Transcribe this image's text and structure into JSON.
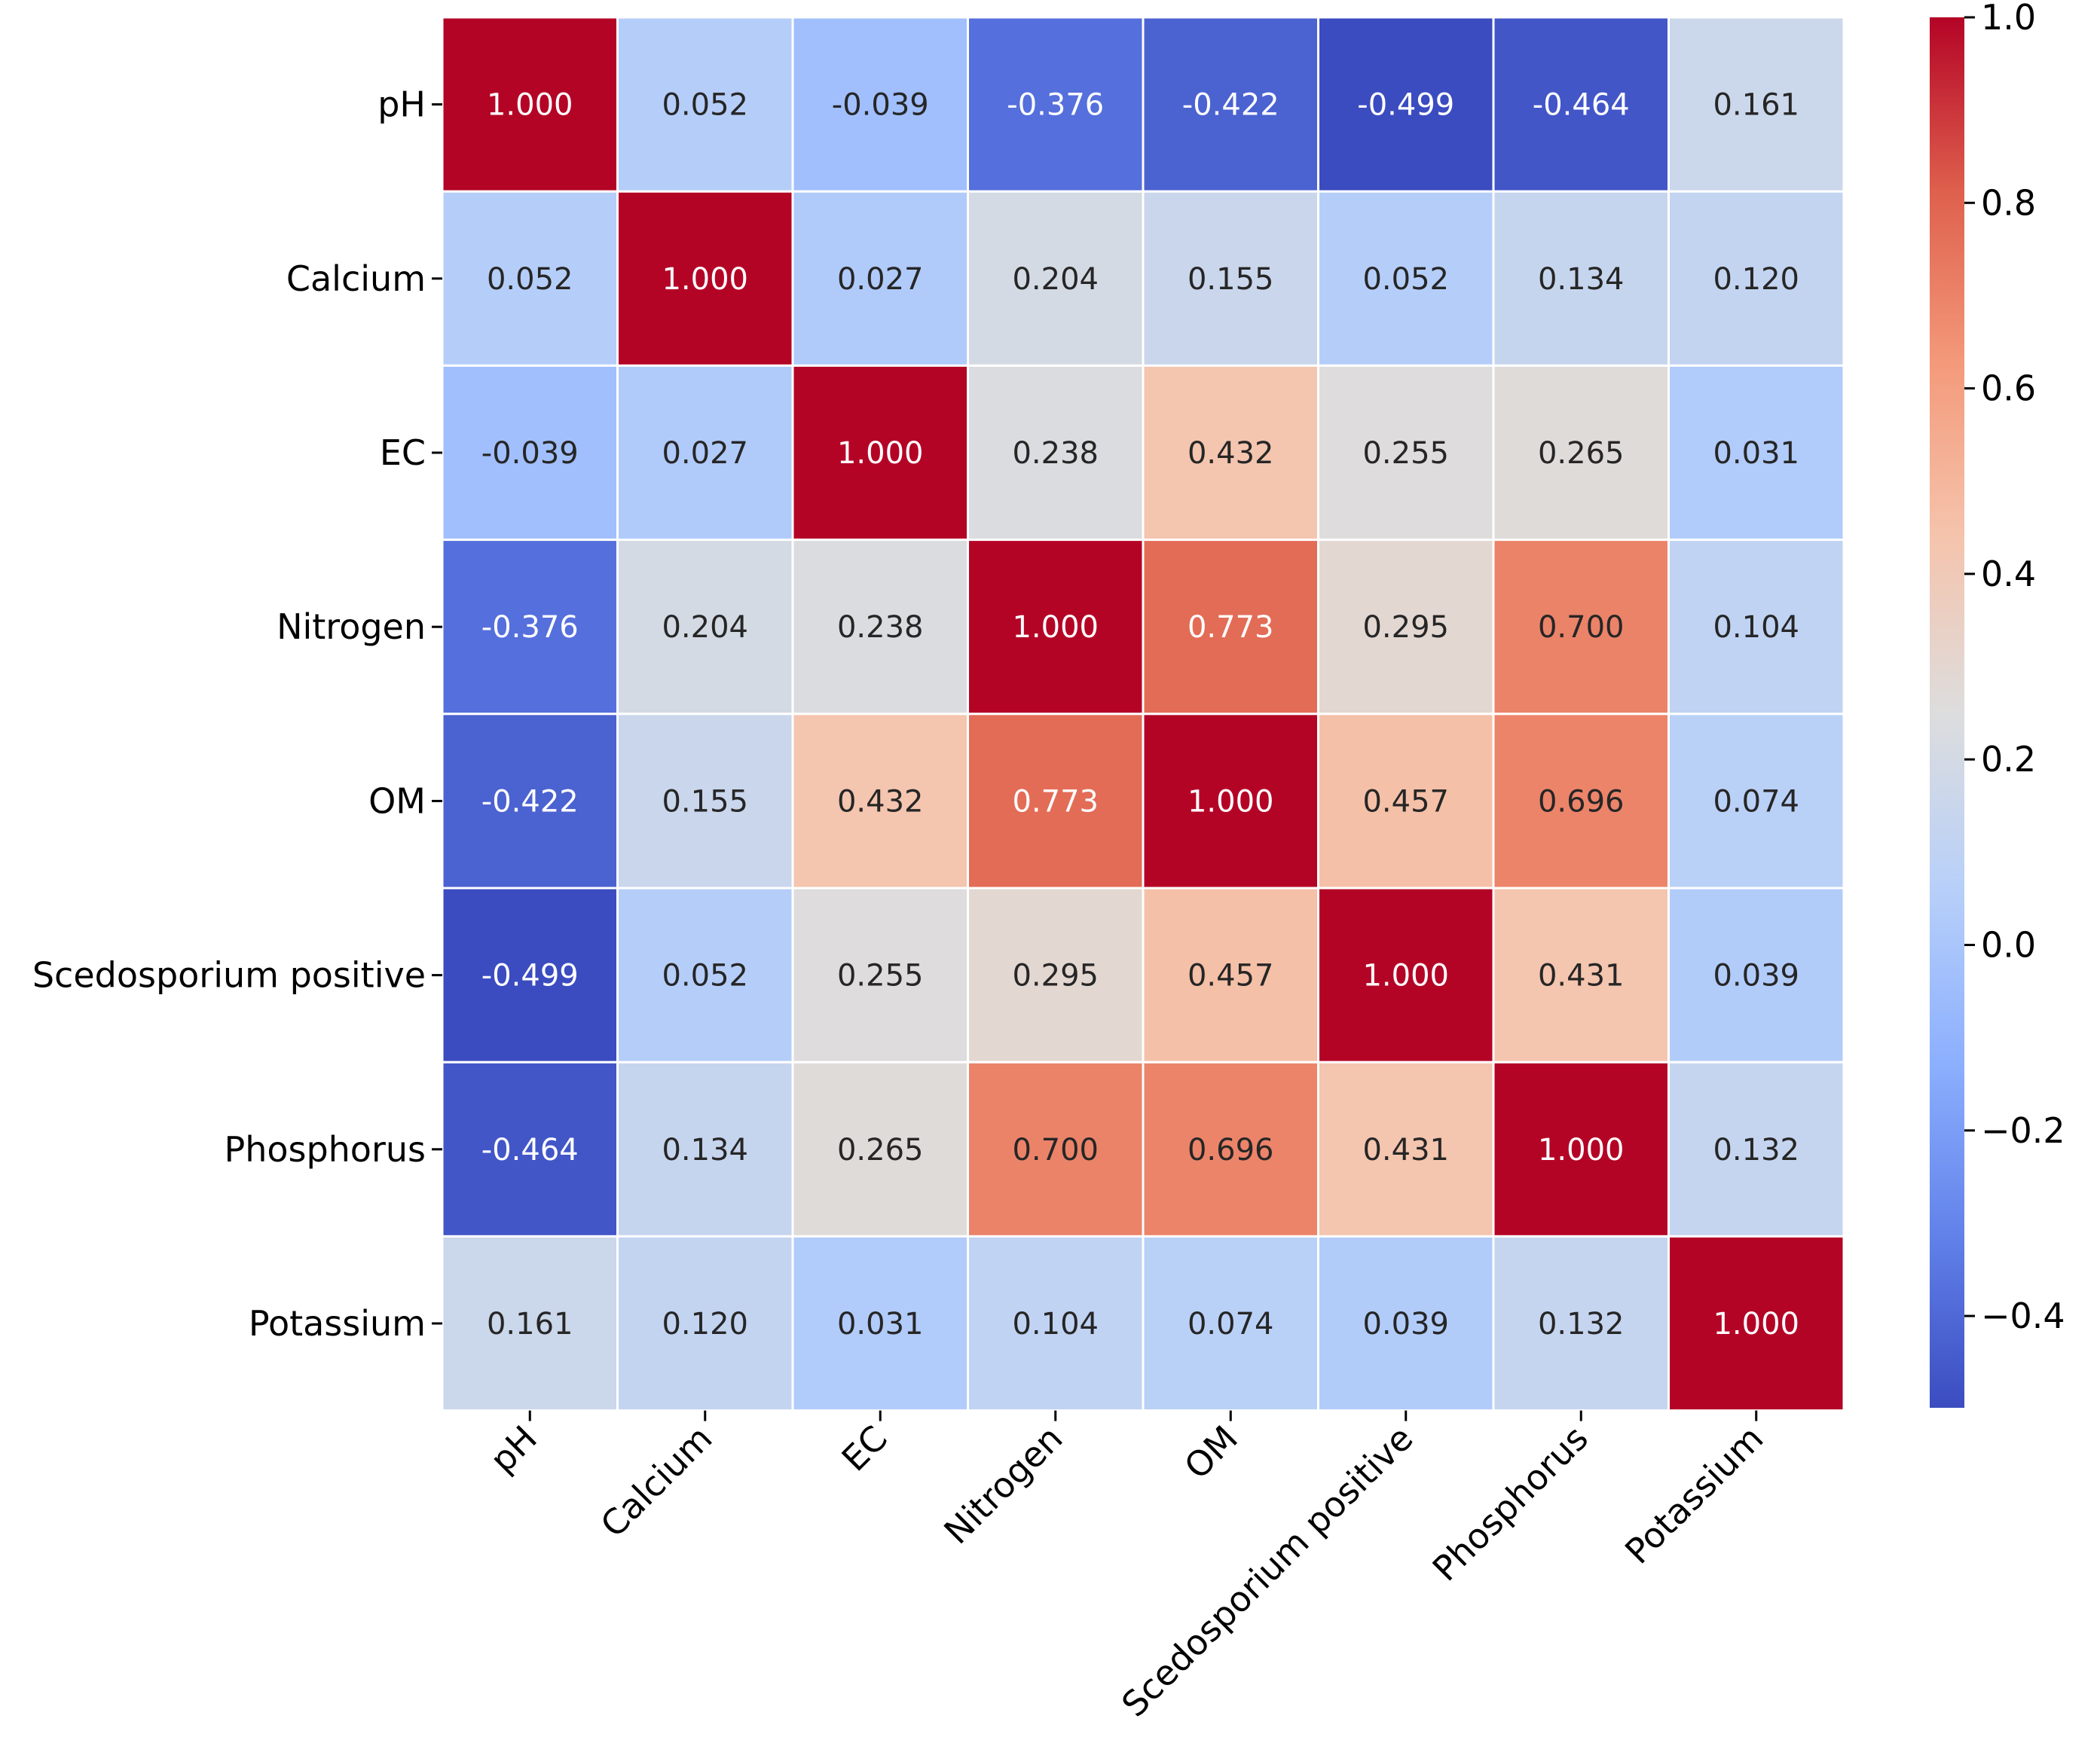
{
  "chart_data": {
    "type": "heatmap",
    "title": "",
    "xlabel": "",
    "ylabel": "",
    "row_labels": [
      "pH",
      "Calcium",
      "EC",
      "Nitrogen",
      "OM",
      "Scedosporium positive",
      "Phosphorus",
      "Potassium"
    ],
    "col_labels": [
      "pH",
      "Calcium",
      "EC",
      "Nitrogen",
      "OM",
      "Scedosporium positive",
      "Phosphorus",
      "Potassium"
    ],
    "values": [
      [
        1.0,
        0.052,
        -0.039,
        -0.376,
        -0.422,
        -0.499,
        -0.464,
        0.161
      ],
      [
        0.052,
        1.0,
        0.027,
        0.204,
        0.155,
        0.052,
        0.134,
        0.12
      ],
      [
        -0.039,
        0.027,
        1.0,
        0.238,
        0.432,
        0.255,
        0.265,
        0.031
      ],
      [
        -0.376,
        0.204,
        0.238,
        1.0,
        0.773,
        0.295,
        0.7,
        0.104
      ],
      [
        -0.422,
        0.155,
        0.432,
        0.773,
        1.0,
        0.457,
        0.696,
        0.074
      ],
      [
        -0.499,
        0.052,
        0.255,
        0.295,
        0.457,
        1.0,
        0.431,
        0.039
      ],
      [
        -0.464,
        0.134,
        0.265,
        0.7,
        0.696,
        0.431,
        1.0,
        0.132
      ],
      [
        0.161,
        0.12,
        0.031,
        0.104,
        0.074,
        0.039,
        0.132,
        1.0
      ]
    ],
    "value_format": "3 decimals",
    "colormap": "coolwarm",
    "colorbar": {
      "vmin": -0.499,
      "vmax": 1.0,
      "ticks": [
        1.0,
        0.8,
        0.6,
        0.4,
        0.2,
        0.0,
        -0.2,
        -0.4
      ],
      "tick_labels": [
        "1.0",
        "0.8",
        "0.6",
        "0.4",
        "0.2",
        "0.0",
        "−0.2",
        "−0.4"
      ]
    }
  }
}
